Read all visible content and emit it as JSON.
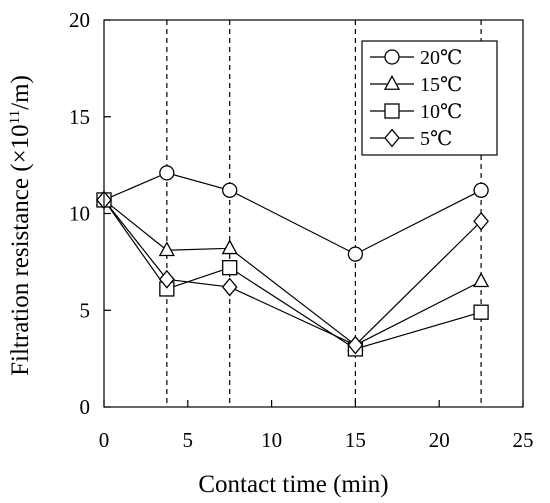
{
  "chart_data": {
    "type": "line",
    "xlabel": "Contact time (min)",
    "ylabel": "Filtration resistance (×10",
    "ylabel_sup": "11",
    "ylabel_tail": "/m)",
    "xlim": [
      0,
      25
    ],
    "ylim": [
      0,
      20
    ],
    "xticks": [
      "0",
      "5",
      "10",
      "15",
      "20",
      "25"
    ],
    "yticks": [
      "0",
      "5",
      "10",
      "15",
      "20"
    ],
    "grid": false,
    "vlines_dashed": [
      3.75,
      7.5,
      15,
      22.5
    ],
    "legend_position": "top-right",
    "x": [
      0,
      3.75,
      7.5,
      15,
      22.5
    ],
    "series": [
      {
        "name": "20℃",
        "marker": "circle",
        "values": [
          10.7,
          12.1,
          11.2,
          7.9,
          11.2
        ]
      },
      {
        "name": "15℃",
        "marker": "triangle",
        "values": [
          10.7,
          8.1,
          8.2,
          3.2,
          6.5
        ]
      },
      {
        "name": "10℃",
        "marker": "square",
        "values": [
          10.7,
          6.1,
          7.2,
          3.0,
          4.9
        ]
      },
      {
        "name": "5℃",
        "marker": "diamond",
        "values": [
          10.7,
          6.6,
          6.2,
          3.2,
          9.6
        ]
      }
    ]
  }
}
